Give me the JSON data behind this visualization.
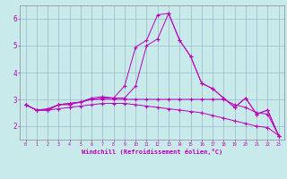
{
  "xlabel": "Windchill (Refroidissement éolien,°C)",
  "x_ticks": [
    0,
    1,
    2,
    3,
    4,
    5,
    6,
    7,
    8,
    9,
    10,
    11,
    12,
    13,
    14,
    15,
    16,
    17,
    18,
    19,
    20,
    21,
    22,
    23
  ],
  "ylim": [
    1.5,
    6.5
  ],
  "xlim": [
    -0.5,
    23.5
  ],
  "yticks": [
    2,
    3,
    4,
    5,
    6
  ],
  "background_color": "#c8eaea",
  "line_color": "#bb00bb",
  "grid_color": "#99bbcc",
  "lines": [
    [
      2.8,
      2.6,
      2.6,
      2.8,
      2.8,
      2.9,
      3.0,
      3.05,
      3.05,
      3.5,
      4.95,
      5.2,
      6.15,
      6.2,
      5.2,
      4.6,
      3.6,
      3.4,
      3.05,
      2.7,
      3.05,
      2.45,
      2.6,
      1.65
    ],
    [
      2.8,
      2.6,
      2.6,
      2.8,
      2.85,
      2.9,
      3.05,
      3.1,
      3.05,
      3.05,
      3.5,
      5.0,
      5.25,
      6.2,
      5.2,
      4.6,
      3.6,
      3.4,
      3.05,
      2.7,
      3.05,
      2.45,
      2.6,
      1.65
    ],
    [
      2.8,
      2.6,
      2.65,
      2.8,
      2.85,
      2.9,
      3.0,
      3.0,
      3.0,
      3.0,
      3.0,
      3.0,
      3.0,
      3.0,
      3.0,
      3.0,
      3.0,
      3.0,
      3.0,
      2.8,
      2.7,
      2.5,
      2.45,
      1.65
    ],
    [
      2.8,
      2.6,
      2.6,
      2.65,
      2.7,
      2.75,
      2.8,
      2.85,
      2.85,
      2.85,
      2.8,
      2.75,
      2.7,
      2.65,
      2.6,
      2.55,
      2.5,
      2.4,
      2.3,
      2.2,
      2.1,
      2.0,
      1.95,
      1.65
    ]
  ]
}
